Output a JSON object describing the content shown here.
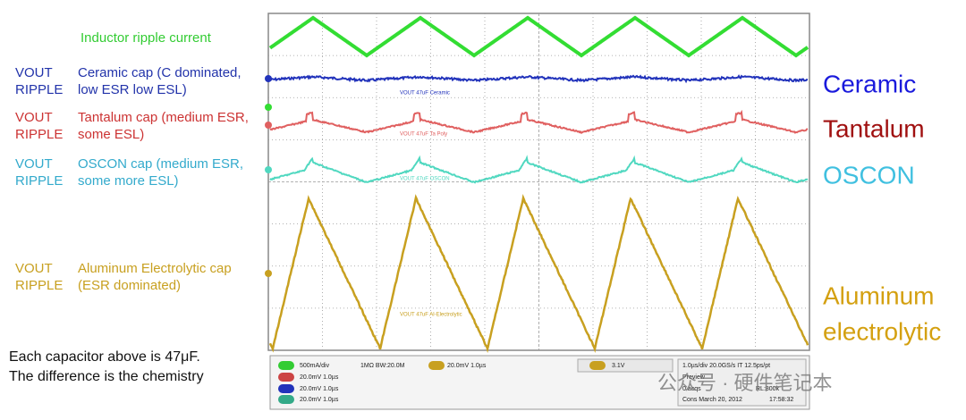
{
  "inductor_label": "Inductor ripple current",
  "rows": [
    {
      "tag": [
        "VOUT",
        "RIPPLE"
      ],
      "desc": [
        "Ceramic cap (C dominated,",
        "low ESR low ESL)"
      ]
    },
    {
      "tag": [
        "VOUT",
        "RIPPLE"
      ],
      "desc": [
        "Tantalum cap (medium ESR,",
        "some ESL)"
      ]
    },
    {
      "tag": [
        "VOUT",
        "RIPPLE"
      ],
      "desc": [
        "OSCON cap (medium ESR,",
        "some more ESL)"
      ]
    },
    {
      "tag": [
        "VOUT",
        "RIPPLE"
      ],
      "desc": [
        "Aluminum Electrolytic cap",
        "(ESR dominated)"
      ]
    }
  ],
  "note": [
    "Each capacitor above is 47μF.",
    "The difference is the chemistry"
  ],
  "right_labels": [
    [
      "Ceramic"
    ],
    [
      "Tantalum"
    ],
    [
      "OSCON"
    ],
    [
      "Aluminum",
      "electrolytic"
    ]
  ],
  "scope": {
    "trace_labels": [
      "VOUT 47uF Ceramic",
      "VOUT 47uF Ta Poly",
      "VOUT 47uF OSCON",
      "VOUT 47uF Al-Electrolytic"
    ],
    "status": [
      "500mA/div",
      "1MΩ BW:20.0M",
      "20.0mV 1.0µs",
      "20.0mV 1.0µs",
      "20.0mV 1.0µs",
      "20.0mV 1.0µs",
      "3.1V",
      "1.0µs/div 20.0GS/s IT 12.5ps/pt",
      "Preview",
      "0 acqs",
      "RL:800k",
      "Cons March 20, 2012",
      "17:58:32"
    ]
  },
  "watermark": "公众号 · 硬件笔记本"
}
